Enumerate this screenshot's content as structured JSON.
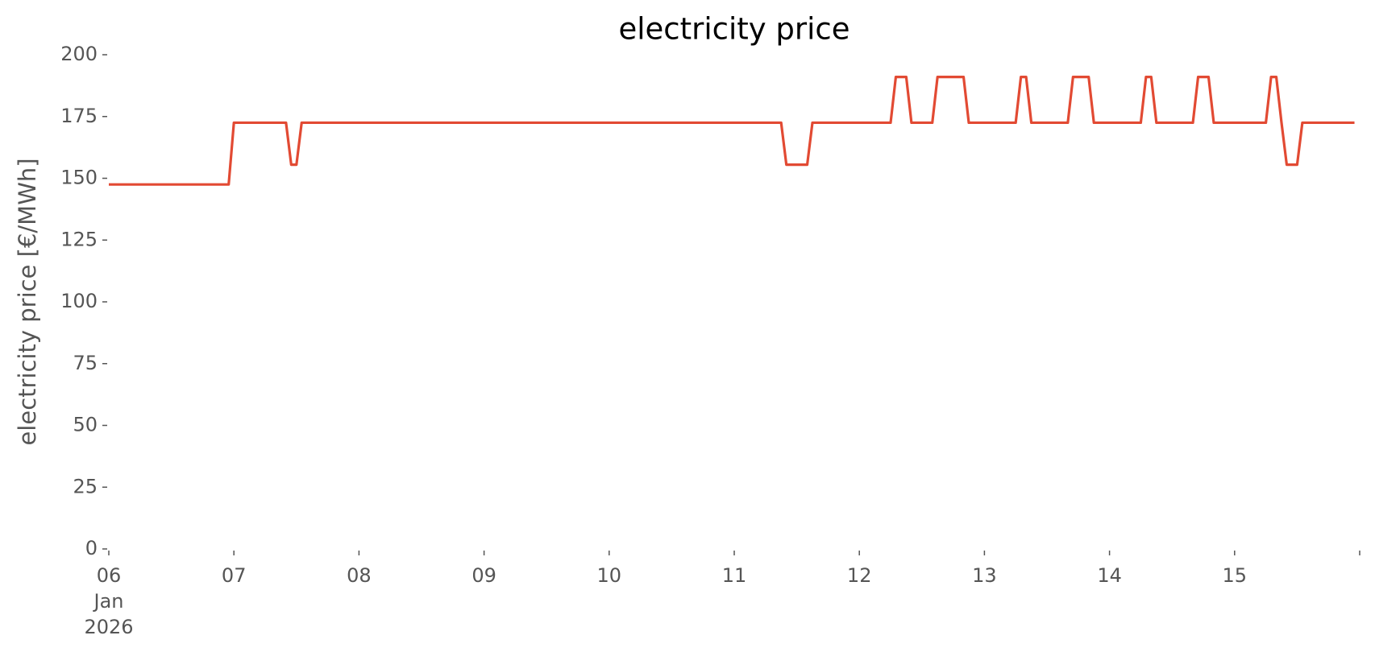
{
  "chart_data": {
    "type": "line",
    "title": "electricity price",
    "ylabel": "electricity price [€/MWh]",
    "x": [
      0,
      23,
      24,
      34,
      35,
      36,
      37,
      129,
      130,
      134,
      135,
      150,
      151,
      153,
      154,
      158,
      159,
      164,
      165,
      174,
      175,
      176,
      177,
      184,
      185,
      188,
      189,
      198,
      199,
      200,
      201,
      208,
      209,
      211,
      212,
      222,
      223,
      224,
      225,
      226,
      228,
      229,
      239
    ],
    "series": [
      {
        "name": "electricity price",
        "color": "#e24a33",
        "values": [
          147.5,
          147.5,
          172.5,
          172.5,
          155.5,
          155.5,
          172.5,
          172.5,
          155.5,
          155.5,
          172.5,
          172.5,
          191,
          191,
          172.5,
          172.5,
          191,
          191,
          172.5,
          172.5,
          191,
          191,
          172.5,
          172.5,
          191,
          191,
          172.5,
          172.5,
          191,
          191,
          172.5,
          172.5,
          191,
          191,
          172.5,
          172.5,
          191,
          191,
          172.5,
          155.5,
          155.5,
          172.5,
          172.5
        ]
      }
    ],
    "xlim": [
      0,
      240
    ],
    "xticks": [
      {
        "value": 0,
        "label": "06\nJan\n2026"
      },
      {
        "value": 24,
        "label": "07"
      },
      {
        "value": 48,
        "label": "08"
      },
      {
        "value": 72,
        "label": "09"
      },
      {
        "value": 96,
        "label": "10"
      },
      {
        "value": 120,
        "label": "11"
      },
      {
        "value": 144,
        "label": "12"
      },
      {
        "value": 168,
        "label": "13"
      },
      {
        "value": 192,
        "label": "14"
      },
      {
        "value": 216,
        "label": "15"
      },
      {
        "value": 240,
        "label": null
      }
    ],
    "ylim": [
      0,
      200
    ],
    "yticks": [
      0,
      25,
      50,
      75,
      100,
      125,
      150,
      175,
      200
    ],
    "grid": false
  }
}
